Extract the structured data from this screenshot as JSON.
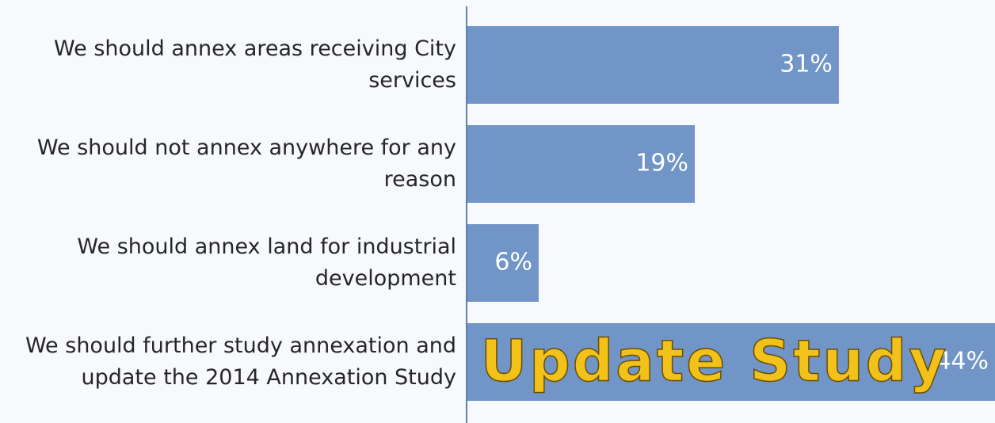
{
  "chart_data": {
    "type": "bar",
    "orientation": "horizontal",
    "categories": [
      "We should annex areas receiving City services",
      "We should not annex anywhere for any reason",
      "We should annex land for industrial development",
      "We should further study annexation and update the 2014 Annexation Study"
    ],
    "values": [
      31,
      19,
      6,
      44
    ],
    "value_labels": [
      "31%",
      "19%",
      "6%",
      "44%"
    ],
    "color": "#7095c6",
    "annotation": "Update Study"
  }
}
